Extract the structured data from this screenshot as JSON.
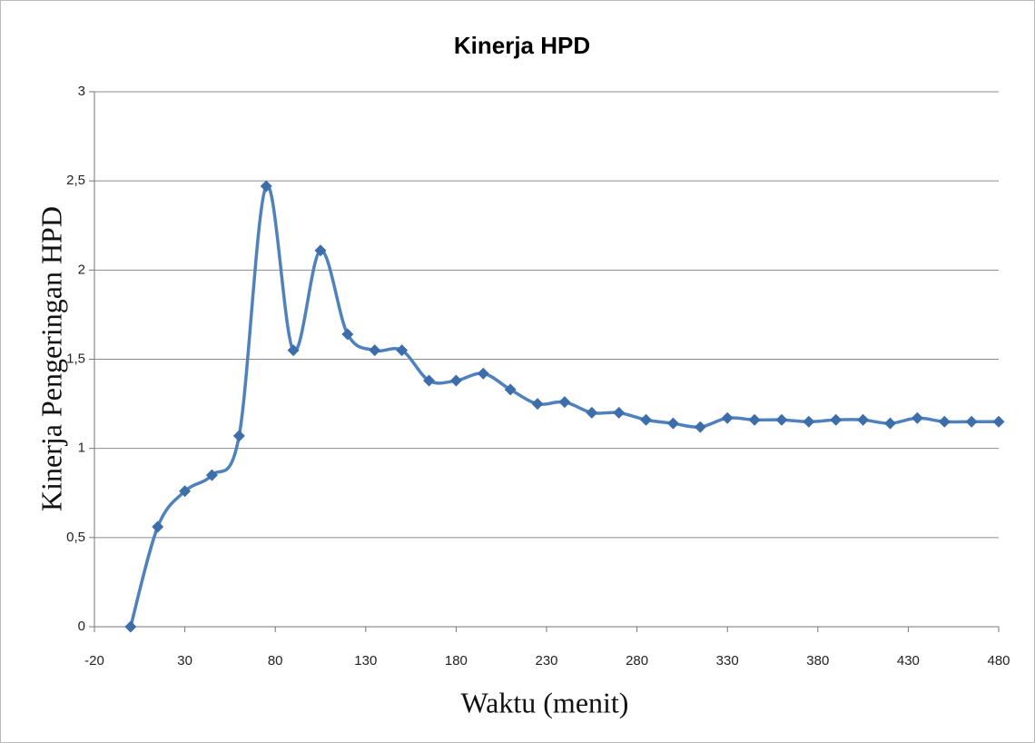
{
  "chart_data": {
    "type": "line",
    "title": "Kinerja HPD",
    "x_label": "Waktu (menit)",
    "y_label": "Kinerja Pengeringan HPD",
    "x": [
      0,
      15,
      30,
      45,
      60,
      75,
      90,
      105,
      120,
      135,
      150,
      165,
      180,
      195,
      210,
      225,
      240,
      255,
      270,
      285,
      300,
      315,
      330,
      345,
      360,
      375,
      390,
      405,
      420,
      435,
      450,
      465,
      480
    ],
    "series": [
      {
        "name": "Kinerja HPD",
        "color": "#4f81bd",
        "marker_color": "#3e6eaa",
        "values": [
          0,
          0.56,
          0.76,
          0.85,
          1.07,
          2.47,
          1.55,
          2.11,
          1.64,
          1.55,
          1.55,
          1.38,
          1.38,
          1.42,
          1.33,
          1.25,
          1.26,
          1.2,
          1.2,
          1.16,
          1.14,
          1.12,
          1.17,
          1.16,
          1.16,
          1.15,
          1.16,
          1.16,
          1.14,
          1.17,
          1.15,
          1.15,
          1.15
        ]
      }
    ],
    "xlim": [
      -20,
      480
    ],
    "xticks": [
      -20,
      30,
      80,
      130,
      180,
      230,
      280,
      330,
      380,
      430,
      480
    ],
    "ylim": [
      0,
      3
    ],
    "yticks": [
      0,
      {
        "value": 0.5,
        "label": "0,5"
      },
      1,
      {
        "value": 1.5,
        "label": "1,5"
      },
      2,
      {
        "value": 2.5,
        "label": "2,5"
      },
      3
    ],
    "grid": true,
    "smooth": true
  }
}
